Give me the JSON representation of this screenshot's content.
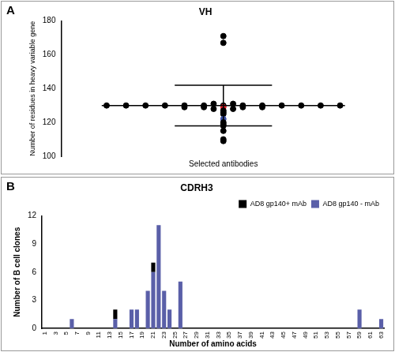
{
  "chart_data": [
    {
      "type": "scatter",
      "annotation": "A",
      "title": "VH",
      "x_label": "Selected antibodies",
      "y_label": "Number of residues in heavy variable gene",
      "values": [
        171,
        167,
        131,
        131,
        130,
        130,
        130,
        130,
        130,
        130,
        130,
        130,
        130,
        130,
        130,
        130,
        130,
        129,
        129,
        129,
        129,
        129,
        128,
        128,
        127,
        126,
        125,
        122,
        120,
        119,
        118,
        115,
        110,
        109
      ],
      "colors": [
        "#000000",
        "#000000",
        "#000000",
        "#000000",
        "#000000",
        "#000000",
        "#000000",
        "#000000",
        "#000000",
        "#000000",
        "#000000",
        "#000000",
        "#000000",
        "#000000",
        "#000000",
        "#000000",
        "#000000",
        "#000000",
        "#000000",
        "#e8202a",
        "#000000",
        "#000000",
        "#000000",
        "#000000",
        "#000000",
        "#000000",
        "#000000",
        "#3b4fa3",
        "#000000",
        "#000000",
        "#000000",
        "#000000",
        "#000000",
        "#000000"
      ],
      "mean": 130,
      "sd": 12,
      "ylim": [
        100,
        180
      ],
      "yticks": [
        100,
        120,
        140,
        160,
        180
      ],
      "grid": false,
      "tick_labels": "y"
    },
    {
      "type": "bar",
      "annotation": "B",
      "title": "CDRH3",
      "stacked": true,
      "x_label": "Number of amino acids",
      "y_label": "Number of B cell clones",
      "categories": [
        1,
        null,
        3,
        null,
        5,
        null,
        7,
        null,
        9,
        null,
        11,
        null,
        13,
        null,
        15,
        null,
        17,
        null,
        19,
        null,
        21,
        null,
        23,
        null,
        25,
        null,
        27,
        null,
        29,
        null,
        31,
        null,
        33,
        null,
        35,
        null,
        37,
        null,
        39,
        null,
        41,
        null,
        43,
        null,
        45,
        null,
        47,
        null,
        49,
        null,
        51,
        null,
        53,
        null,
        55,
        null,
        57,
        null,
        59,
        null,
        61,
        null,
        63
      ],
      "series": [
        {
          "name": "AD8 gp140+ mAb",
          "color": "#000000",
          "values": [
            0,
            0,
            0,
            0,
            0,
            0,
            0,
            0,
            0,
            0,
            0,
            0,
            0,
            1,
            0,
            0,
            0,
            0,
            0,
            0,
            1,
            0,
            0,
            0,
            0,
            0,
            0,
            0,
            0,
            0,
            0,
            0,
            0,
            0,
            0,
            0,
            0,
            0,
            0,
            0,
            0,
            0,
            0,
            0,
            0,
            0,
            0,
            0,
            0,
            0,
            0,
            0,
            0,
            0,
            0,
            0,
            0,
            0,
            0,
            0,
            0,
            0,
            0
          ]
        },
        {
          "name": "AD8 gp140 - mAb",
          "color": "#5a5fa8",
          "values": [
            0,
            0,
            0,
            0,
            0,
            1,
            0,
            0,
            0,
            0,
            0,
            0,
            0,
            1,
            0,
            0,
            2,
            2,
            0,
            4,
            6,
            11,
            4,
            2,
            0,
            5,
            0,
            0,
            0,
            0,
            0,
            0,
            0,
            0,
            0,
            0,
            0,
            0,
            0,
            0,
            0,
            0,
            0,
            0,
            0,
            0,
            0,
            0,
            0,
            0,
            0,
            0,
            0,
            0,
            0,
            0,
            0,
            0,
            2,
            0,
            0,
            0,
            1
          ]
        }
      ],
      "ylim": [
        0,
        12
      ],
      "yticks": [
        0,
        3,
        6,
        9,
        12
      ],
      "legend": "top-right",
      "grid": false
    }
  ]
}
